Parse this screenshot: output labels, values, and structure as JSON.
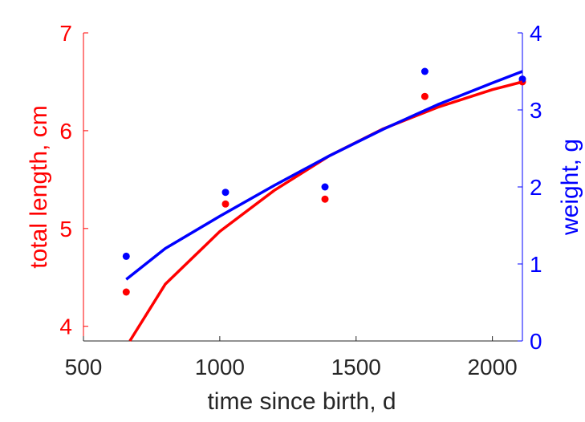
{
  "chart_data": {
    "type": "line",
    "title": "",
    "xlabel": "time since birth, d",
    "ylabel_left": "total length, cm",
    "ylabel_right": "weight, g",
    "xlim": [
      500,
      2110
    ],
    "ylim_left": [
      3.85,
      7
    ],
    "ylim_right": [
      0,
      4
    ],
    "xticks": [
      500,
      1000,
      1500,
      2000
    ],
    "yticks_left": [
      4,
      5,
      6,
      7
    ],
    "yticks_right": [
      0,
      1,
      2,
      3,
      4
    ],
    "grid": false,
    "colors": {
      "length": "#ff0000",
      "weight": "#0000ff",
      "axis": "#262626"
    },
    "series": [
      {
        "axis": "left",
        "kind": "points",
        "x": [
          657,
          1021,
          1386,
          1752,
          2110
        ],
        "y": [
          4.35,
          5.25,
          5.3,
          6.35,
          6.5
        ]
      },
      {
        "axis": "right",
        "kind": "points",
        "x": [
          657,
          1021,
          1386,
          1752,
          2110
        ],
        "y": [
          1.1,
          1.93,
          2.0,
          3.5,
          3.4
        ]
      },
      {
        "axis": "left",
        "kind": "curve",
        "x": [
          670,
          800,
          1000,
          1200,
          1400,
          1600,
          1800,
          2000,
          2110
        ],
        "y": [
          3.85,
          4.43,
          4.97,
          5.39,
          5.74,
          6.02,
          6.24,
          6.42,
          6.5
        ]
      },
      {
        "axis": "right",
        "kind": "curve",
        "x": [
          657,
          800,
          1000,
          1200,
          1400,
          1600,
          1800,
          2000,
          2110
        ],
        "y": [
          0.8,
          1.2,
          1.62,
          2.02,
          2.4,
          2.75,
          3.07,
          3.35,
          3.5
        ]
      }
    ]
  }
}
